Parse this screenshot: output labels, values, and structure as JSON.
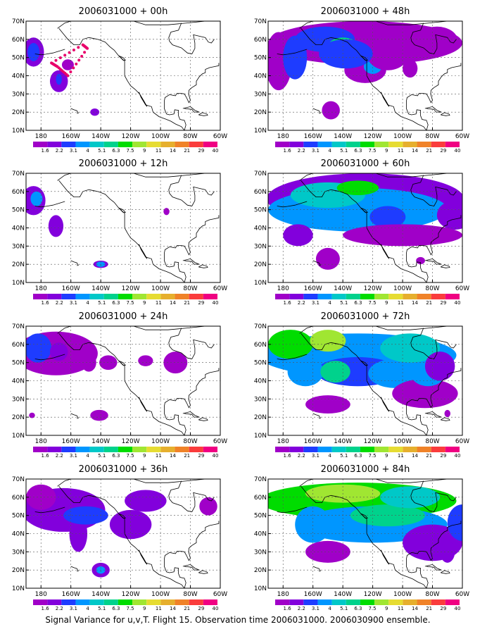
{
  "footer": "Signal Variance for u,v,T. Flight 15. Observation time 2006031000. 2006030900 ensemble.",
  "colorbar": {
    "labels": [
      "1.6",
      "2.2",
      "3.1",
      "4",
      "5.1",
      "6.3",
      "7.5",
      "9",
      "11",
      "14",
      "21",
      "29",
      "40"
    ],
    "colors": [
      "#a000c8",
      "#8200dc",
      "#1e3cff",
      "#0096ff",
      "#00c8c8",
      "#00d28c",
      "#00dc00",
      "#a0e632",
      "#e6dc32",
      "#e6af2d",
      "#f08228",
      "#fa3c3c",
      "#f00082"
    ]
  },
  "axes": {
    "lat_labels": [
      "10N",
      "20N",
      "30N",
      "40N",
      "50N",
      "60N",
      "70N"
    ],
    "lon_labels": [
      "180",
      "160W",
      "140W",
      "120W",
      "100W",
      "80W",
      "60W"
    ]
  },
  "panels": [
    {
      "title": "2006031000 + 00h"
    },
    {
      "title": "2006031000 + 48h"
    },
    {
      "title": "2006031000 + 12h"
    },
    {
      "title": "2006031000 + 60h"
    },
    {
      "title": "2006031000 + 24h"
    },
    {
      "title": "2006031000 + 72h"
    },
    {
      "title": "2006031000 + 36h"
    },
    {
      "title": "2006031000 + 84h"
    }
  ],
  "flight_track_lonlat": [
    [
      -173,
      47
    ],
    [
      -152,
      57
    ],
    [
      -149,
      55
    ],
    [
      -162,
      40
    ],
    [
      -169,
      45
    ],
    [
      -173,
      47
    ]
  ]
}
